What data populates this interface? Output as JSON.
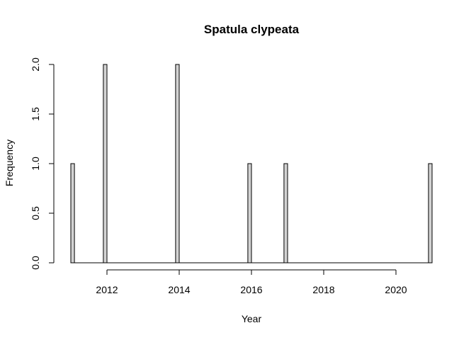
{
  "chart_data": {
    "type": "bar",
    "title": "Spatula clypeata",
    "xlabel": "Year",
    "ylabel": "Frequency",
    "xlim": [
      2011,
      2021
    ],
    "ylim": [
      0,
      2
    ],
    "x_ticks": [
      2012,
      2014,
      2016,
      2018,
      2020
    ],
    "x_tick_labels": [
      "2012",
      "2014",
      "2016",
      "2018",
      "2020"
    ],
    "y_ticks": [
      0,
      0.5,
      1,
      1.5,
      2
    ],
    "y_tick_labels": [
      "0.0",
      "0.5",
      "1.0",
      "1.5",
      "2.0"
    ],
    "bin_width": 0.1,
    "bins": [
      {
        "x0": 2011.0,
        "value": 1
      },
      {
        "x0": 2011.9,
        "value": 2
      },
      {
        "x0": 2013.9,
        "value": 2
      },
      {
        "x0": 2015.9,
        "value": 1
      },
      {
        "x0": 2016.9,
        "value": 1
      },
      {
        "x0": 2020.9,
        "value": 1
      }
    ],
    "bar_fill": "#d3d3d3",
    "bar_stroke": "#000000",
    "grid": false,
    "legend": "none"
  }
}
